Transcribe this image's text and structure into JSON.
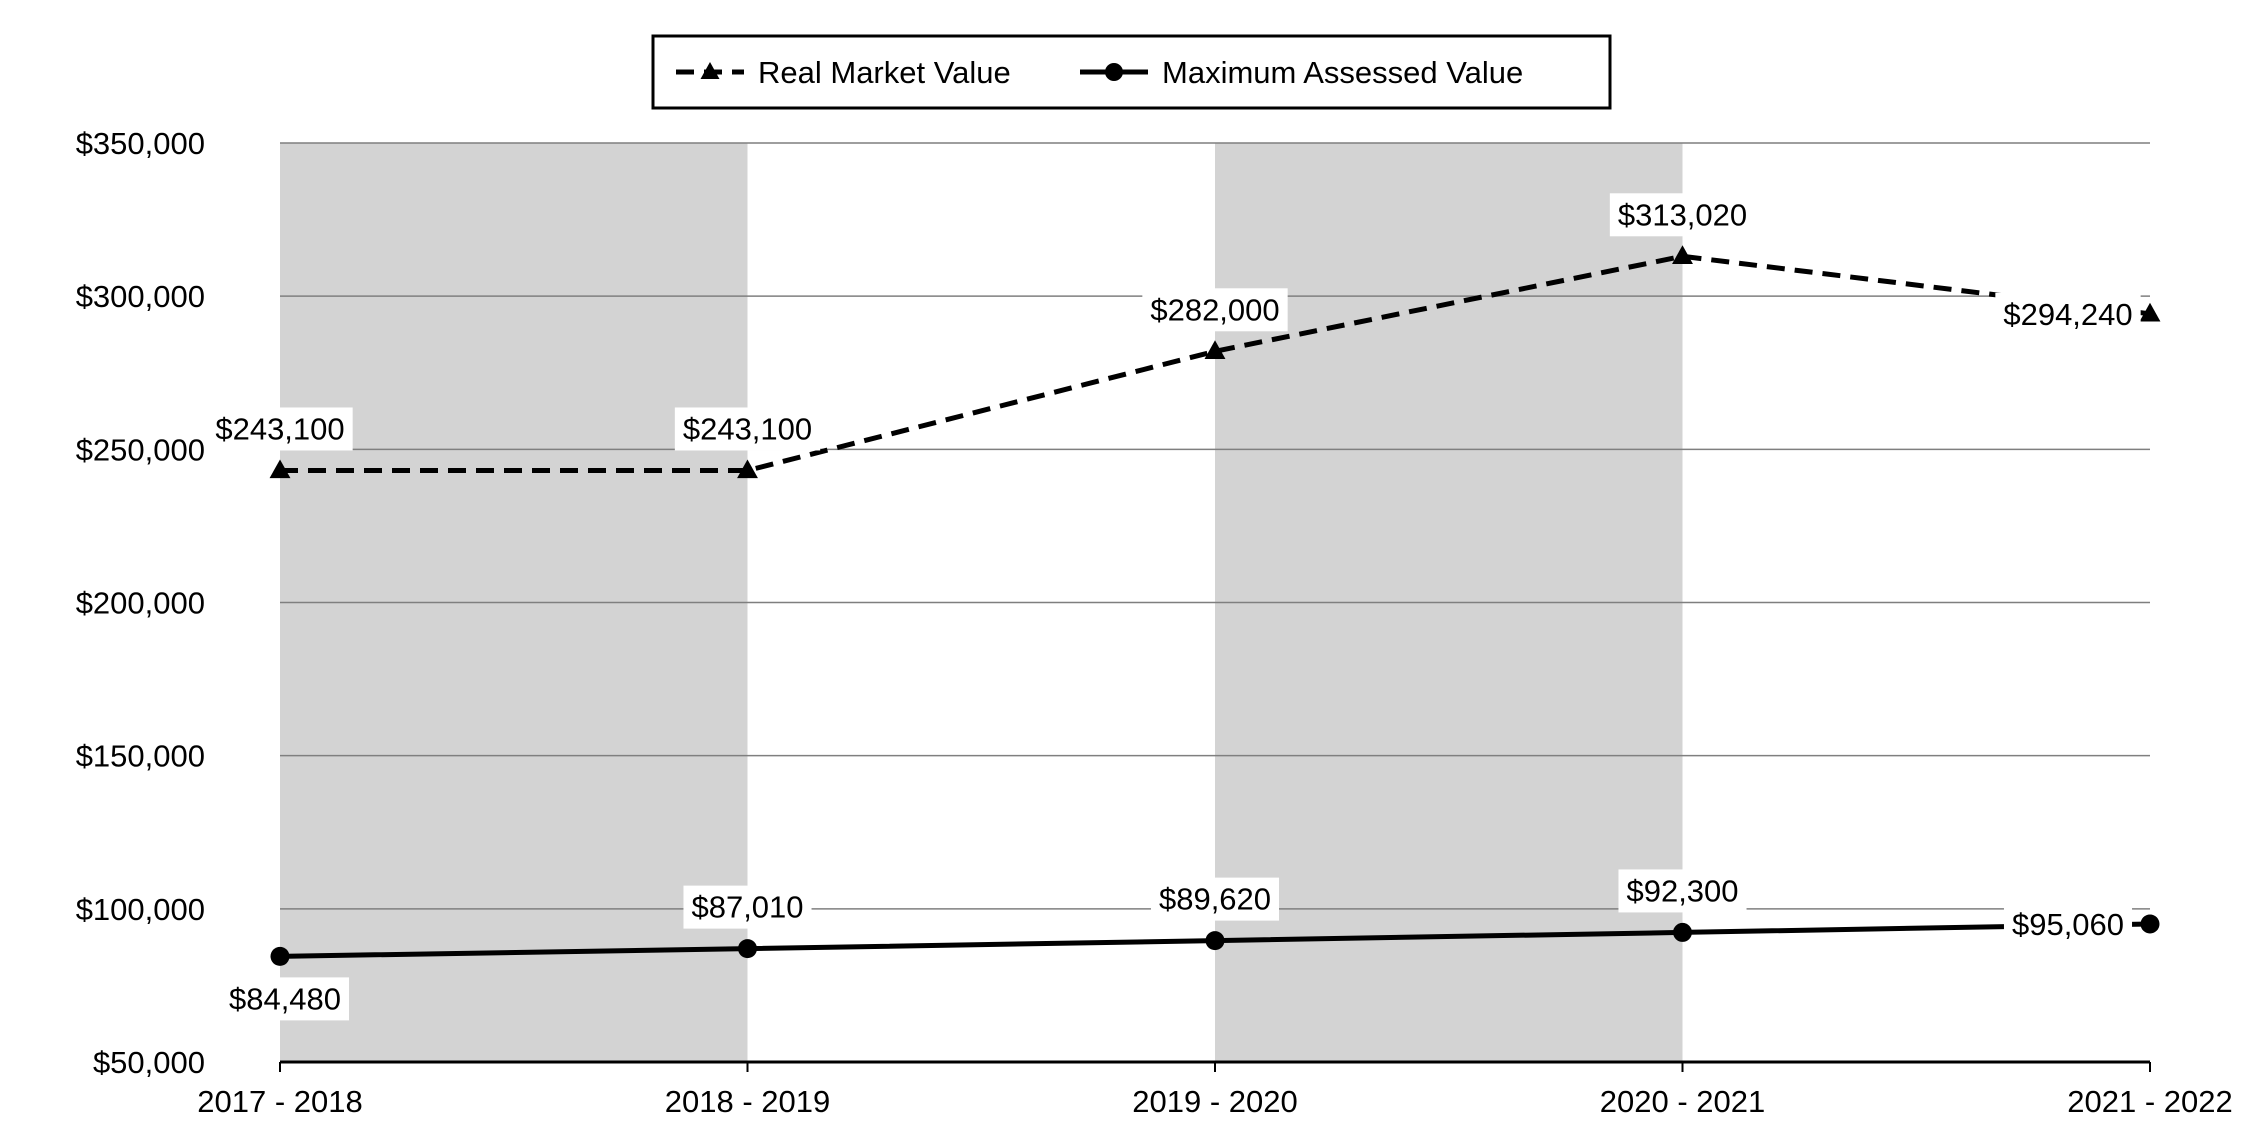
{
  "chart_data": {
    "type": "line",
    "categories": [
      "2017 - 2018",
      "2018 - 2019",
      "2019 - 2020",
      "2020 - 2021",
      "2021 - 2022"
    ],
    "series": [
      {
        "name": "Real Market Value",
        "values": [
          243100,
          243100,
          282000,
          313020,
          294240
        ],
        "labels": [
          "$243,100",
          "$243,100",
          "$282,000",
          "$313,020",
          "$294,240"
        ],
        "line_style": "dashed",
        "marker": "triangle",
        "color": "#000000"
      },
      {
        "name": "Maximum Assessed Value",
        "values": [
          84480,
          87010,
          89620,
          92300,
          95060
        ],
        "labels": [
          "$84,480",
          "$87,010",
          "$89,620",
          "$92,300",
          "$95,060"
        ],
        "line_style": "solid",
        "marker": "circle",
        "color": "#000000"
      }
    ],
    "y_ticks": [
      50000,
      100000,
      150000,
      200000,
      250000,
      300000,
      350000
    ],
    "y_tick_labels": [
      "$50,000",
      "$100,000",
      "$150,000",
      "$200,000",
      "$250,000",
      "$300,000",
      "$350,000"
    ],
    "ylim": [
      50000,
      350000
    ],
    "grid": true,
    "alternating_band_color": "#d3d3d3",
    "legend_position": "top-center"
  }
}
